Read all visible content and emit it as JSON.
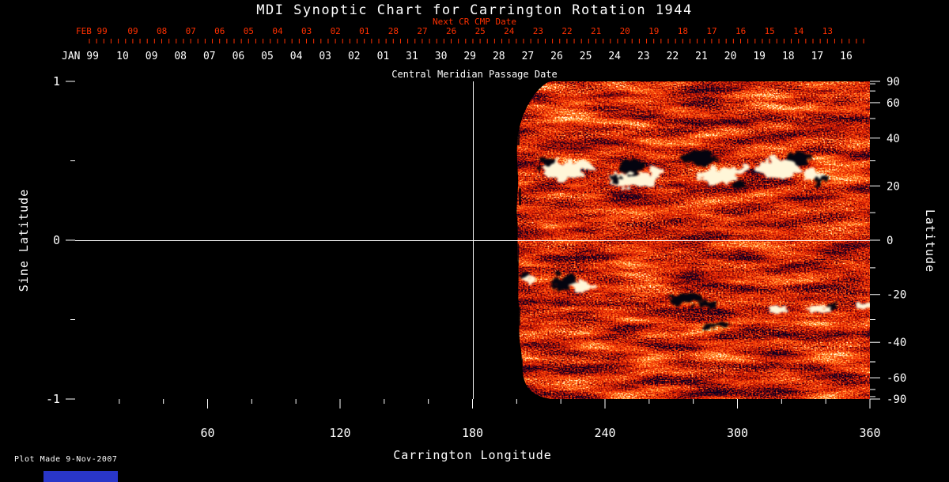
{
  "title": "MDI Synoptic Chart for Carrington Rotation 1944",
  "footer": {
    "plot_made": "Plot Made  9-Nov-2007"
  },
  "colors": {
    "background": "#000000",
    "foreground": "#ffffff",
    "next_cr_axis": "#ff3000",
    "corner_mark": "#2936c8",
    "magnetogram_quiet": "#e03a08",
    "magnetogram_positive": "#fff6d8",
    "magnetogram_negative": "#04040f"
  },
  "chart_data": {
    "type": "heatmap",
    "title": "MDI Synoptic Chart for Carrington Rotation 1944",
    "xlabel": "Carrington Longitude",
    "ylabel_left": "Sine Latitude",
    "ylabel_right": "Latitude",
    "xlim": [
      0,
      360
    ],
    "ylim_sine": [
      -1,
      1
    ],
    "grid": {
      "vertical_line_longitude": 180,
      "horizontal_line_latitude": 0
    },
    "axes": {
      "x": {
        "label": "Carrington Longitude",
        "ticks": [
          60,
          120,
          180,
          240,
          300,
          360
        ]
      },
      "y_left": {
        "label": "Sine Latitude",
        "ticks": [
          1,
          0,
          -1
        ]
      },
      "y_right": {
        "label": "Latitude",
        "ticks": [
          90,
          60,
          40,
          20,
          0,
          -20,
          -40,
          -60,
          -90
        ]
      },
      "top_next_cr": {
        "label": "Next CR CMP Date",
        "month_label": "FEB 99",
        "dates": [
          "09",
          "08",
          "07",
          "06",
          "05",
          "04",
          "03",
          "02",
          "01",
          "28",
          "27",
          "26",
          "25",
          "24",
          "23",
          "22",
          "21",
          "20",
          "19",
          "18",
          "17",
          "16",
          "15",
          "14",
          "13"
        ]
      },
      "top_cmp": {
        "label": "Central Meridian Passage Date",
        "month_label": "JAN 99",
        "dates": [
          "10",
          "09",
          "08",
          "07",
          "06",
          "05",
          "04",
          "03",
          "02",
          "01",
          "31",
          "30",
          "29",
          "28",
          "27",
          "26",
          "25",
          "24",
          "23",
          "22",
          "21",
          "20",
          "19",
          "18",
          "17",
          "16"
        ]
      }
    },
    "data_coverage": {
      "longitude_observed_from": 198,
      "longitude_observed_to": 360,
      "note": "Longitudes 0-198 of the rotation not yet observed at plot time; that region is blank (black). Observed region has ragged leading edge with rounded corners."
    },
    "colormap": "magnetic flux: black/dark = negative polarity, orange-red = quiet sun noise, white/yellow = positive polarity",
    "active_regions": [
      {
        "longitude": 219,
        "latitude": 27,
        "note": "white plage with small black pore on leading edge"
      },
      {
        "longitude": 252,
        "latitude": 25,
        "note": "bipolar group, black patch above large white plage"
      },
      {
        "longitude": 285,
        "latitude": 28,
        "note": "black patch north of white plage"
      },
      {
        "longitude": 324,
        "latitude": 26,
        "note": "white plage with black patches to its right"
      },
      {
        "longitude": 222,
        "latitude": -16,
        "note": "black-white bipolar pair near data edge"
      },
      {
        "longitude": 281,
        "latitude": -22,
        "note": "elongated dark patches"
      },
      {
        "longitude": 338,
        "latitude": -27,
        "note": "small white plage with dark pore"
      }
    ]
  }
}
